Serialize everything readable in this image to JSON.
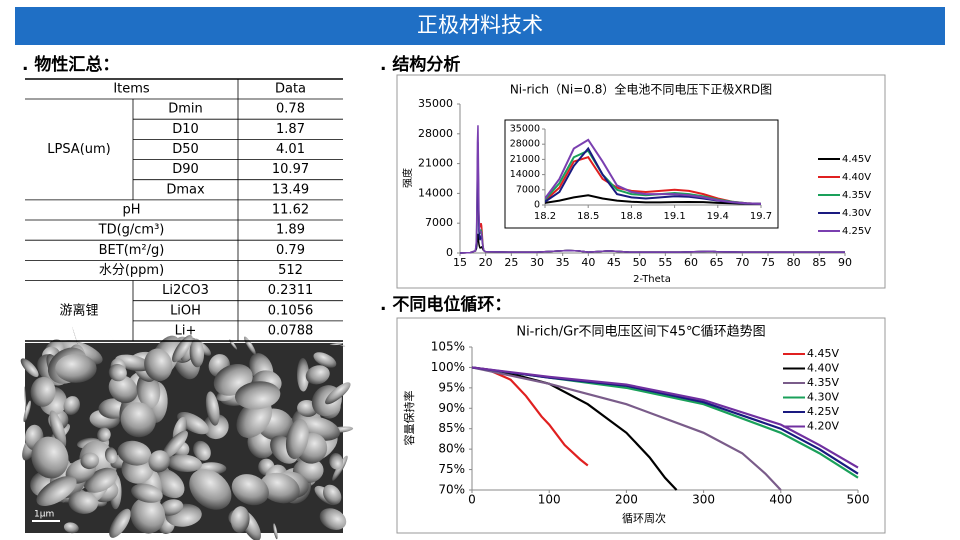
{
  "header": {
    "title": "正极材料技术"
  },
  "sections": [
    ". 物性汇总：",
    ". 结构分析",
    ". 不同电位循环："
  ],
  "table": {
    "header": [
      "Items",
      "Data"
    ],
    "rows": [
      {
        "group": "LPSA(um)",
        "cells": [
          {
            "item": "Dmin",
            "value": 0.78
          },
          {
            "item": "D10",
            "value": 1.87
          },
          {
            "item": "D50",
            "value": 4.01
          },
          {
            "item": "D90",
            "value": 10.97
          },
          {
            "item": "Dmax",
            "value": 13.49
          }
        ]
      },
      {
        "item": "pH",
        "value": 11.62
      },
      {
        "item": "TD(g/cm³)",
        "value": 1.89
      },
      {
        "item": "BET(m²/g)",
        "value": 0.79
      },
      {
        "item": "水分(ppm)",
        "value": 512
      },
      {
        "group": "游离锂",
        "cells": [
          {
            "item": "Li2CO3",
            "value": 0.2311
          },
          {
            "item": "LiOH",
            "value": 0.1056
          },
          {
            "item": "Li+",
            "value": 0.0788
          }
        ]
      }
    ]
  },
  "image": {
    "scale_label": "1μm"
  },
  "chart_data": [
    {
      "type": "line",
      "title": "Ni-rich（Ni=0.8）全电池不同电压下正极XRD图",
      "x_label": "2-Theta",
      "y_label": "强度",
      "xlim": [
        15,
        90
      ],
      "ylim": [
        0,
        35000
      ],
      "xticks": [
        15,
        20,
        25,
        30,
        35,
        40,
        45,
        50,
        55,
        60,
        65,
        70,
        75,
        80,
        85,
        90
      ],
      "yticks": [
        0,
        7000,
        14000,
        21000,
        28000,
        35000
      ],
      "inset": {
        "xlim": [
          18.2,
          19.7
        ],
        "ylim": [
          0,
          35000
        ],
        "xticks": [
          18.2,
          18.5,
          18.8,
          19.1,
          19.4,
          19.7
        ],
        "yticks": [
          0,
          7000,
          14000,
          21000,
          28000,
          35000
        ]
      },
      "x": [
        15,
        17,
        18,
        18.2,
        18.3,
        18.4,
        18.5,
        18.6,
        18.7,
        18.8,
        18.9,
        19.0,
        19.1,
        19.2,
        19.3,
        19.4,
        19.5,
        19.6,
        19.7,
        20,
        25,
        30,
        36,
        38,
        40,
        44,
        48,
        55,
        58,
        64,
        65,
        70,
        80,
        90
      ],
      "series": [
        {
          "name": "4.45V",
          "color": "#000000",
          "values": [
            0,
            100,
            500,
            1000,
            2000,
            3500,
            4500,
            3000,
            2000,
            1500,
            1200,
            1200,
            1300,
            1400,
            1300,
            1000,
            800,
            600,
            500,
            300,
            200,
            200,
            600,
            500,
            200,
            500,
            200,
            200,
            200,
            400,
            300,
            200,
            200,
            200
          ]
        },
        {
          "name": "4.40V",
          "color": "#e02020",
          "values": [
            0,
            100,
            500,
            2000,
            8000,
            20000,
            22000,
            12000,
            8000,
            6500,
            6000,
            6500,
            7000,
            6500,
            5000,
            3000,
            1500,
            800,
            500,
            300,
            200,
            200,
            600,
            500,
            200,
            500,
            200,
            200,
            200,
            400,
            300,
            200,
            200,
            200
          ]
        },
        {
          "name": "4.35V",
          "color": "#1aa05a",
          "values": [
            0,
            100,
            500,
            2500,
            10000,
            22000,
            25000,
            14000,
            7000,
            5000,
            4500,
            5000,
            5500,
            5000,
            4000,
            2500,
            1500,
            800,
            500,
            300,
            200,
            200,
            600,
            500,
            200,
            500,
            200,
            200,
            200,
            400,
            300,
            200,
            200,
            200
          ]
        },
        {
          "name": "4.30V",
          "color": "#1a1a80",
          "values": [
            0,
            100,
            500,
            1500,
            6000,
            18000,
            26000,
            14000,
            5000,
            3500,
            3000,
            3500,
            4000,
            3800,
            3000,
            2000,
            1200,
            700,
            500,
            300,
            200,
            200,
            600,
            500,
            200,
            500,
            200,
            200,
            200,
            400,
            300,
            200,
            200,
            200
          ]
        },
        {
          "name": "4.25V",
          "color": "#7a3fb0",
          "values": [
            0,
            100,
            500,
            3000,
            12000,
            26000,
            30000,
            20000,
            9000,
            6000,
            5000,
            5000,
            5000,
            4500,
            3500,
            2200,
            1300,
            800,
            500,
            300,
            200,
            200,
            600,
            500,
            200,
            500,
            200,
            200,
            200,
            400,
            300,
            200,
            200,
            200
          ]
        }
      ]
    },
    {
      "type": "line",
      "title": "Ni-rich/Gr不同电压区间下45℃循环趋势图",
      "x_label": "循环周次",
      "y_label": "容量保持率",
      "xlim": [
        0,
        500
      ],
      "ylim": [
        70,
        105
      ],
      "xticks": [
        0,
        100,
        200,
        300,
        400,
        500
      ],
      "yticks": [
        {
          "value": 70,
          "label": "70%"
        },
        {
          "value": 75,
          "label": "75%"
        },
        {
          "value": 80,
          "label": "80%"
        },
        {
          "value": 85,
          "label": "85%"
        },
        {
          "value": 90,
          "label": "90%"
        },
        {
          "value": 95,
          "label": "95%"
        },
        {
          "value": 100,
          "label": "100%"
        },
        {
          "value": 105,
          "label": "105%"
        }
      ],
      "series": [
        {
          "name": "4.45V",
          "color": "#e02020",
          "x": [
            0,
            20,
            50,
            70,
            90,
            100,
            120,
            140,
            150
          ],
          "values": [
            100,
            99.5,
            97,
            93,
            88,
            86,
            81,
            77.5,
            76
          ]
        },
        {
          "name": "4.40V",
          "color": "#000000",
          "x": [
            0,
            50,
            100,
            150,
            200,
            230,
            250,
            265
          ],
          "values": [
            100,
            98.5,
            96,
            91,
            84,
            78,
            73,
            70
          ]
        },
        {
          "name": "4.35V",
          "color": "#7a5c8a",
          "x": [
            0,
            100,
            200,
            300,
            350,
            380,
            400
          ],
          "values": [
            100,
            96,
            91,
            84,
            79,
            74,
            70
          ]
        },
        {
          "name": "4.30V",
          "color": "#1aa05a",
          "x": [
            0,
            100,
            200,
            300,
            400,
            450,
            500
          ],
          "values": [
            100,
            97.5,
            95,
            91,
            84,
            79,
            73
          ]
        },
        {
          "name": "4.25V",
          "color": "#1a1a80",
          "x": [
            0,
            100,
            200,
            300,
            400,
            450,
            500
          ],
          "values": [
            100,
            97.5,
            95.5,
            91.5,
            85,
            80,
            74
          ]
        },
        {
          "name": "4.20V",
          "color": "#7030a0",
          "x": [
            0,
            100,
            200,
            300,
            400,
            450,
            500
          ],
          "values": [
            100,
            97.7,
            95.8,
            92,
            86,
            81,
            75.5
          ]
        }
      ]
    }
  ]
}
